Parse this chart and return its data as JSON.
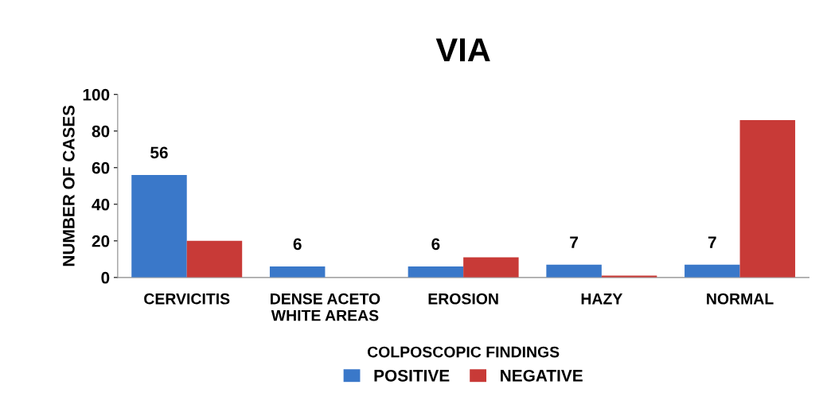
{
  "chart_data": {
    "type": "bar",
    "title": "VIA",
    "xlabel": "COLPOSCOPIC FINDINGS",
    "ylabel": "NUMBER OF CASES",
    "categories": [
      "CERVICITIS",
      "DENSE ACETO\nWHITE AREAS",
      "EROSION",
      "HAZY",
      "NORMAL"
    ],
    "series": [
      {
        "name": "POSITIVE",
        "color": "#3a78c9",
        "values": [
          56,
          6,
          6,
          7,
          7
        ],
        "value_labels": [
          "56",
          "6",
          "6",
          "7",
          "7"
        ]
      },
      {
        "name": "NEGATIVE",
        "color": "#c83a37",
        "values": [
          20,
          0,
          11,
          1,
          86
        ]
      }
    ],
    "ylim": [
      0,
      100
    ],
    "yticks": [
      0,
      20,
      40,
      60,
      80,
      100
    ],
    "grid": false,
    "legend": "bottom"
  }
}
